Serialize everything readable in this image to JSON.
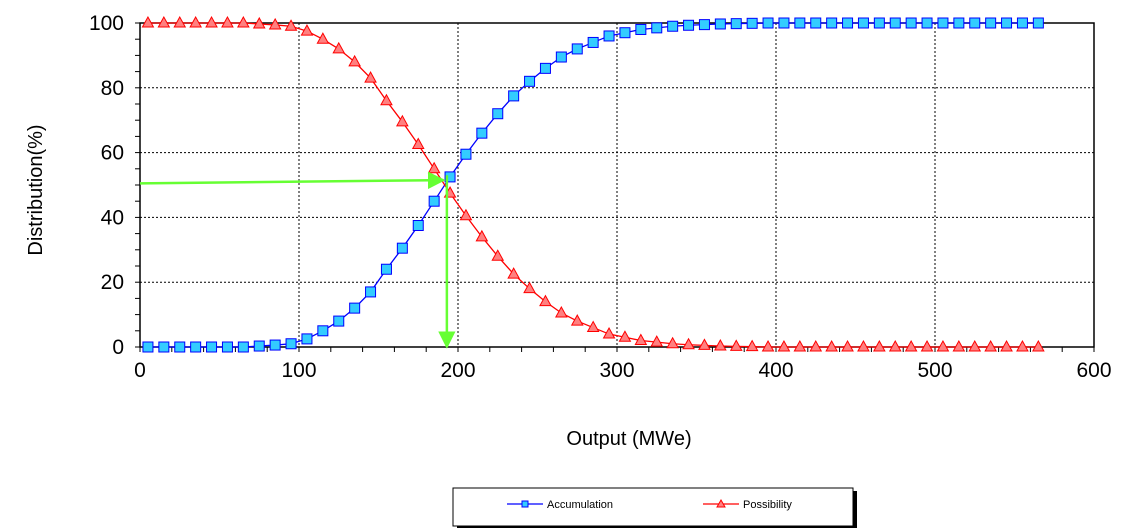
{
  "chart_data": {
    "type": "line",
    "xlabel": "Output (MWe)",
    "ylabel": "Distribution(%)",
    "xlim": [
      0,
      600
    ],
    "ylim": [
      0,
      100
    ],
    "xticks": [
      0,
      100,
      200,
      300,
      400,
      500,
      600
    ],
    "yticks": [
      0,
      20,
      40,
      60,
      80,
      100
    ],
    "grid": true,
    "grid_style": "dashed",
    "legend_position": "bottom-center",
    "x": [
      5,
      15,
      25,
      35,
      45,
      55,
      65,
      75,
      85,
      95,
      105,
      115,
      125,
      135,
      145,
      155,
      165,
      175,
      185,
      195,
      205,
      215,
      225,
      235,
      245,
      255,
      265,
      275,
      285,
      295,
      305,
      315,
      325,
      335,
      345,
      355,
      365,
      375,
      385,
      395,
      405,
      415,
      425,
      435,
      445,
      455,
      465,
      475,
      485,
      495,
      505,
      515,
      525,
      535,
      545,
      555,
      565
    ],
    "series": [
      {
        "name": "Accumulation",
        "color": "#0000ff",
        "marker": "square",
        "marker_fill": "#33ccff",
        "values": [
          0,
          0,
          0,
          0,
          0,
          0,
          0,
          0.3,
          0.6,
          1,
          2.5,
          5,
          8,
          12,
          17,
          24,
          30.5,
          37.5,
          45,
          52.5,
          59.5,
          66,
          72,
          77.5,
          82,
          86,
          89.5,
          92,
          94,
          96,
          97,
          98,
          98.5,
          99,
          99.3,
          99.5,
          99.7,
          99.8,
          99.9,
          100,
          100,
          100,
          100,
          100,
          100,
          100,
          100,
          100,
          100,
          100,
          100,
          100,
          100,
          100,
          100,
          100,
          100
        ]
      },
      {
        "name": "Possibility",
        "color": "#ff0000",
        "marker": "triangle",
        "marker_fill": "#ff8080",
        "values": [
          100,
          100,
          100,
          100,
          100,
          100,
          100,
          99.7,
          99.4,
          99,
          97.5,
          95,
          92,
          88,
          83,
          76,
          69.5,
          62.5,
          55,
          47.5,
          40.5,
          34,
          28,
          22.5,
          18,
          14,
          10.5,
          8,
          6,
          4,
          3,
          2,
          1.5,
          1,
          0.7,
          0.5,
          0.3,
          0.2,
          0.1,
          0,
          0,
          0,
          0,
          0,
          0,
          0,
          0,
          0,
          0,
          0,
          0,
          0,
          0,
          0,
          0,
          0,
          0
        ]
      }
    ],
    "annotations": [
      {
        "type": "arrow",
        "color": "#66ff33",
        "from": [
          0,
          50.5
        ],
        "to": [
          191,
          51.5
        ]
      },
      {
        "type": "arrow",
        "color": "#66ff33",
        "from": [
          193,
          53
        ],
        "to": [
          193,
          0
        ]
      }
    ]
  }
}
